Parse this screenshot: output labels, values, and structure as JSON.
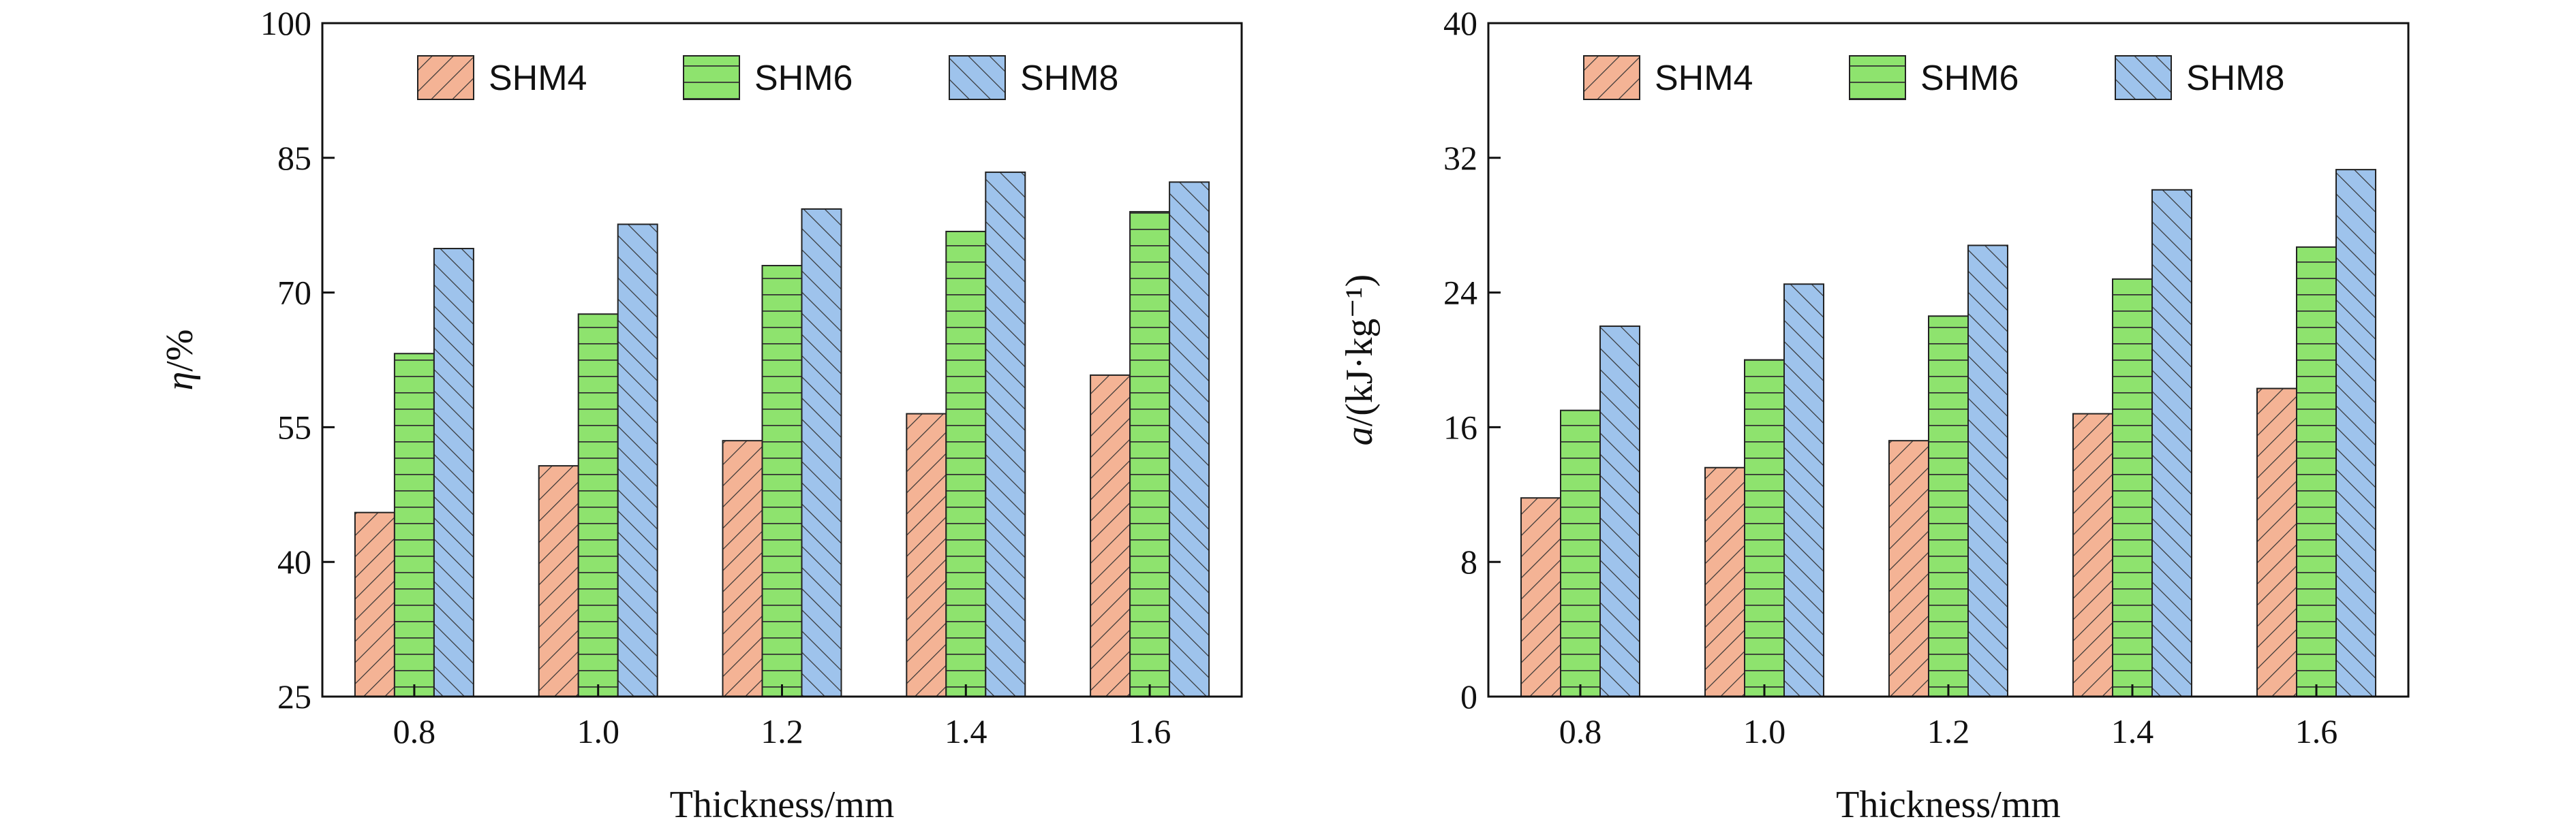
{
  "chart_data": [
    {
      "type": "bar",
      "categories": [
        "0.8",
        "1.0",
        "1.2",
        "1.4",
        "1.6"
      ],
      "series": [
        {
          "name": "SHM4",
          "values": [
            45.5,
            50.7,
            53.5,
            56.5,
            60.8
          ]
        },
        {
          "name": "SHM6",
          "values": [
            63.2,
            67.6,
            73.0,
            76.8,
            79.0
          ]
        },
        {
          "name": "SHM8",
          "values": [
            74.9,
            77.6,
            79.3,
            83.4,
            82.3
          ]
        }
      ],
      "title": "",
      "xlabel": "Thickness/mm",
      "ylabel_symbol": "η",
      "ylabel_unit": "/%",
      "ylim": [
        25,
        100
      ],
      "yticks": [
        "25",
        "40",
        "55",
        "70",
        "85",
        "100"
      ],
      "legend_position": "top",
      "grid": false
    },
    {
      "type": "bar",
      "categories": [
        "0.8",
        "1.0",
        "1.2",
        "1.4",
        "1.6"
      ],
      "series": [
        {
          "name": "SHM4",
          "values": [
            11.8,
            13.6,
            15.2,
            16.8,
            18.3
          ]
        },
        {
          "name": "SHM6",
          "values": [
            17.0,
            20.0,
            22.6,
            24.8,
            26.7
          ]
        },
        {
          "name": "SHM8",
          "values": [
            22.0,
            24.5,
            26.8,
            30.1,
            31.3
          ]
        }
      ],
      "title": "",
      "xlabel": "Thickness/mm",
      "ylabel_symbol": "a",
      "ylabel_unit": "/(kJ·kg⁻¹)",
      "ylim": [
        0,
        40
      ],
      "yticks": [
        "0",
        "8",
        "16",
        "24",
        "32",
        "40"
      ],
      "legend_position": "top",
      "grid": false
    }
  ],
  "colors": {
    "SHM4": "#f4b395",
    "SHM6": "#8ee36e",
    "SHM8": "#9ec3ec",
    "edge": "#222222"
  }
}
